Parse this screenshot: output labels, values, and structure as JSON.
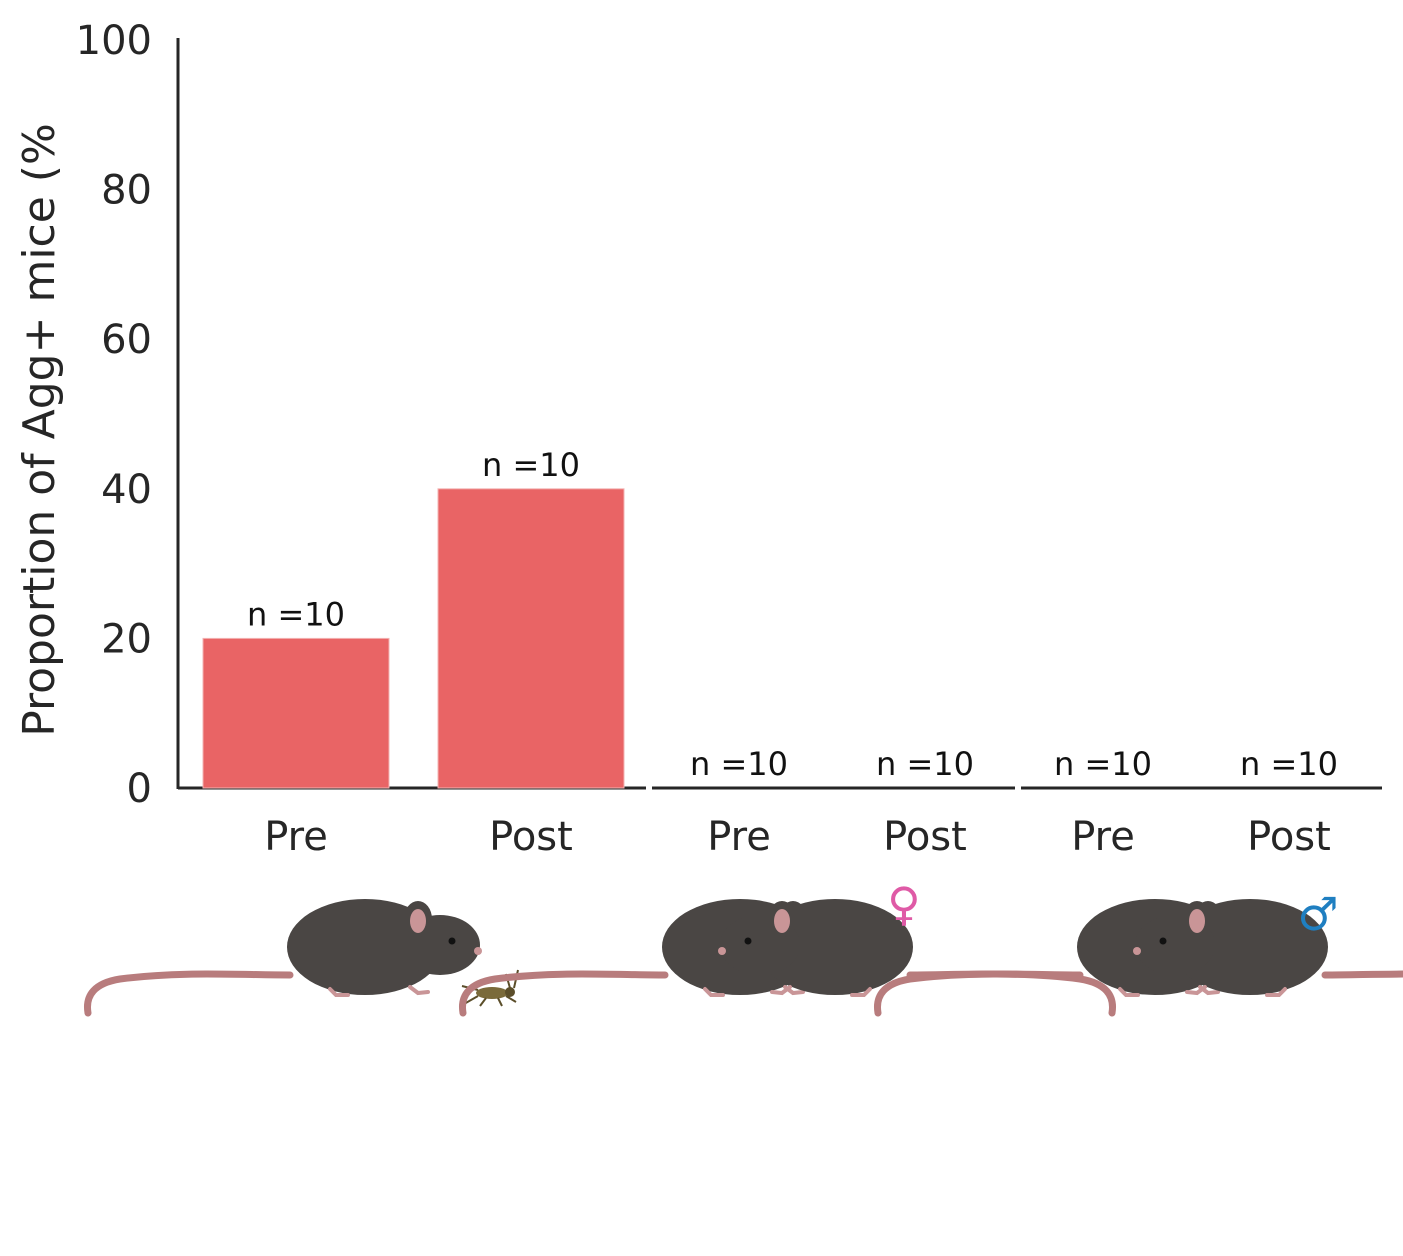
{
  "chart_data": {
    "type": "bar",
    "title": "",
    "xlabel": "",
    "ylabel": "Proportion of Agg+ mice (%",
    "ylim": [
      0,
      100
    ],
    "yticks": [
      0,
      20,
      40,
      60,
      80,
      100
    ],
    "categories": [
      "Pre",
      "Post",
      "Pre",
      "Post",
      "Pre",
      "Post"
    ],
    "values": [
      20,
      40,
      0,
      0,
      0,
      0
    ],
    "annotations": [
      "n =10",
      "n =10",
      "n =10",
      "n =10",
      "n =10",
      "n =10"
    ],
    "bar_color": "#e96465",
    "grid": false,
    "groups": [
      {
        "icon": "mouse-with-cricket-icon",
        "symbol": ""
      },
      {
        "icon": "two-mice-icon",
        "symbol": "♀",
        "symbol_color": "#df5aa6"
      },
      {
        "icon": "two-mice-icon",
        "symbol": "♂",
        "symbol_color": "#1f7fc1"
      }
    ]
  }
}
